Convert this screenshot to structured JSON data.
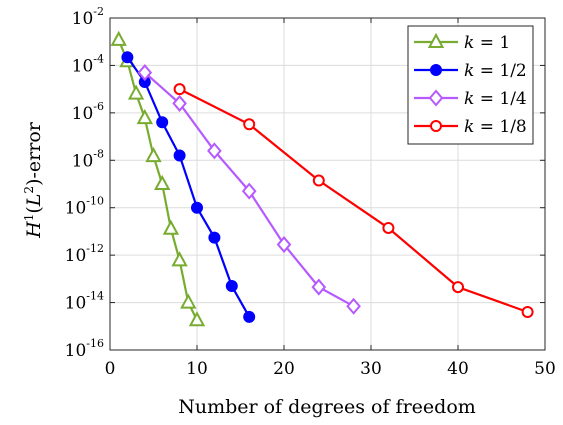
{
  "chart_data": {
    "type": "line",
    "xlabel": "Number of degrees of freedom",
    "ylabel": "H1(L2)-error",
    "xlim": [
      0,
      50
    ],
    "ylim": [
      1e-16,
      0.01
    ],
    "yscale": "log",
    "grid": true,
    "legend_position": "top-right",
    "x_ticks": [
      "0",
      "10",
      "20",
      "30",
      "40",
      "50"
    ],
    "y_ticks": [
      {
        "base": "10",
        "exp": "-2",
        "value": 0.01
      },
      {
        "base": "10",
        "exp": "-4",
        "value": 0.0001
      },
      {
        "base": "10",
        "exp": "-6",
        "value": 1e-06
      },
      {
        "base": "10",
        "exp": "-8",
        "value": 1e-08
      },
      {
        "base": "10",
        "exp": "-10",
        "value": 1e-10
      },
      {
        "base": "10",
        "exp": "-12",
        "value": 1e-12
      },
      {
        "base": "10",
        "exp": "-14",
        "value": 1e-14
      },
      {
        "base": "10",
        "exp": "-16",
        "value": 1e-16
      }
    ],
    "series": [
      {
        "name": "k = 1",
        "legend_label": "k",
        "legend_value": "1",
        "color": "#77ac30",
        "marker": "triangle",
        "x": [
          1,
          2,
          3,
          4,
          5,
          6,
          7,
          8,
          9,
          10
        ],
        "y": [
          0.0012,
          0.00015,
          6.5e-06,
          6e-07,
          1.5e-08,
          1e-09,
          1.3e-11,
          6e-13,
          1e-14,
          1.8e-15
        ]
      },
      {
        "name": "k = 1/2",
        "legend_label": "k",
        "legend_value": "1/2",
        "color": "#0000ff",
        "marker": "circle-filled",
        "x": [
          2,
          4,
          6,
          8,
          10,
          12,
          14,
          16
        ],
        "y": [
          0.00022,
          2e-05,
          4e-07,
          1.6e-08,
          1e-10,
          5.5e-12,
          5e-14,
          2.5e-15
        ]
      },
      {
        "name": "k = 1/4",
        "legend_label": "k",
        "legend_value": "1/4",
        "color": "#b65aff",
        "marker": "diamond",
        "x": [
          4,
          8,
          12,
          16,
          20,
          24,
          28
        ],
        "y": [
          5e-05,
          2.5e-06,
          2.5e-08,
          5e-10,
          2.8e-12,
          4.5e-14,
          7e-15
        ]
      },
      {
        "name": "k = 1/8",
        "legend_label": "k",
        "legend_value": "1/8",
        "color": "#ff0000",
        "marker": "circle-open",
        "x": [
          8,
          16,
          24,
          32,
          40,
          48
        ],
        "y": [
          1e-05,
          3.3e-07,
          1.4e-09,
          1.4e-11,
          4.5e-14,
          4e-15
        ]
      }
    ]
  }
}
